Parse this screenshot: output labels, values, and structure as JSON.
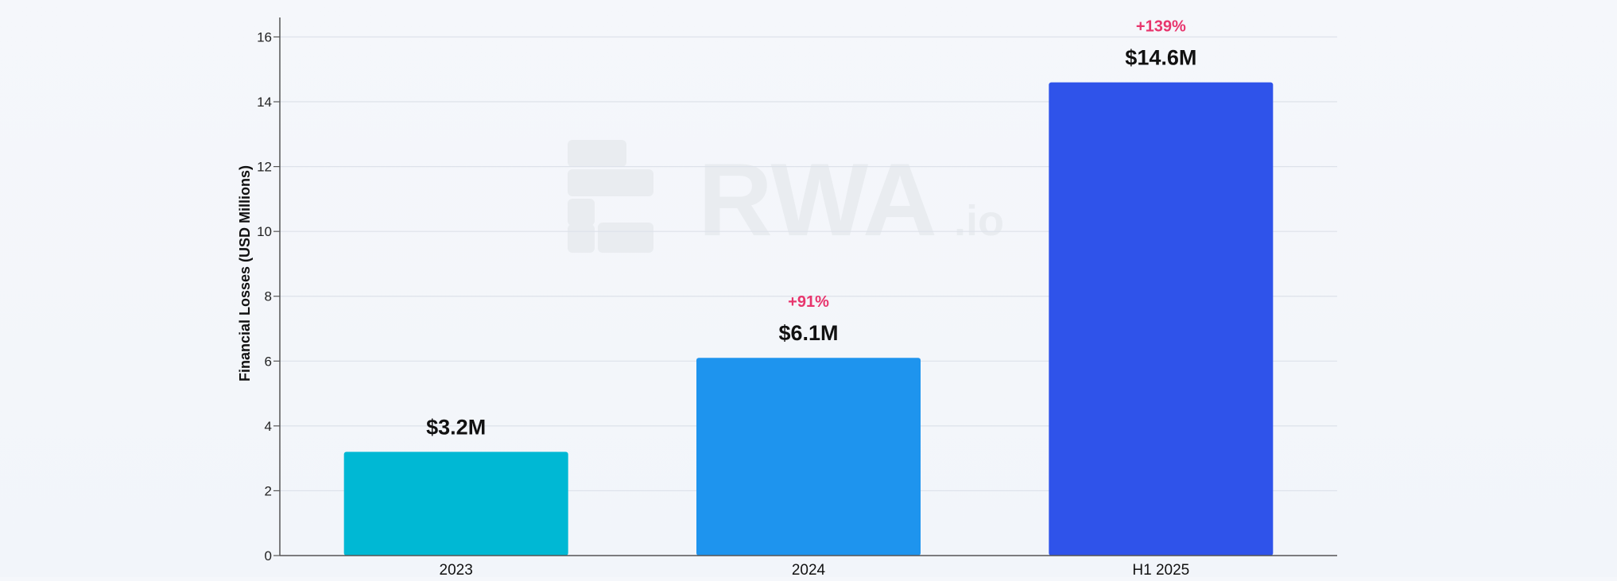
{
  "watermark": {
    "text": "RWA",
    "suffix": ".io"
  },
  "chart_data": {
    "type": "bar",
    "categories": [
      "2023",
      "2024",
      "H1 2025"
    ],
    "values": [
      3.2,
      6.1,
      14.6
    ],
    "value_labels": [
      "$3.2M",
      "$6.1M",
      "$14.6M"
    ],
    "growth_labels": [
      "",
      "+91%",
      "+139%"
    ],
    "bar_colors": [
      "#00b8d4",
      "#1e94ee",
      "#2f53ea"
    ],
    "growth_color": "#e8356d",
    "title": "",
    "xlabel": "",
    "ylabel": "Financial Losses (USD Millions)",
    "ylim": [
      0,
      16.6
    ],
    "yticks": [
      0,
      2,
      4,
      6,
      8,
      10,
      12,
      14,
      16
    ],
    "grid": true,
    "legend": "none"
  }
}
